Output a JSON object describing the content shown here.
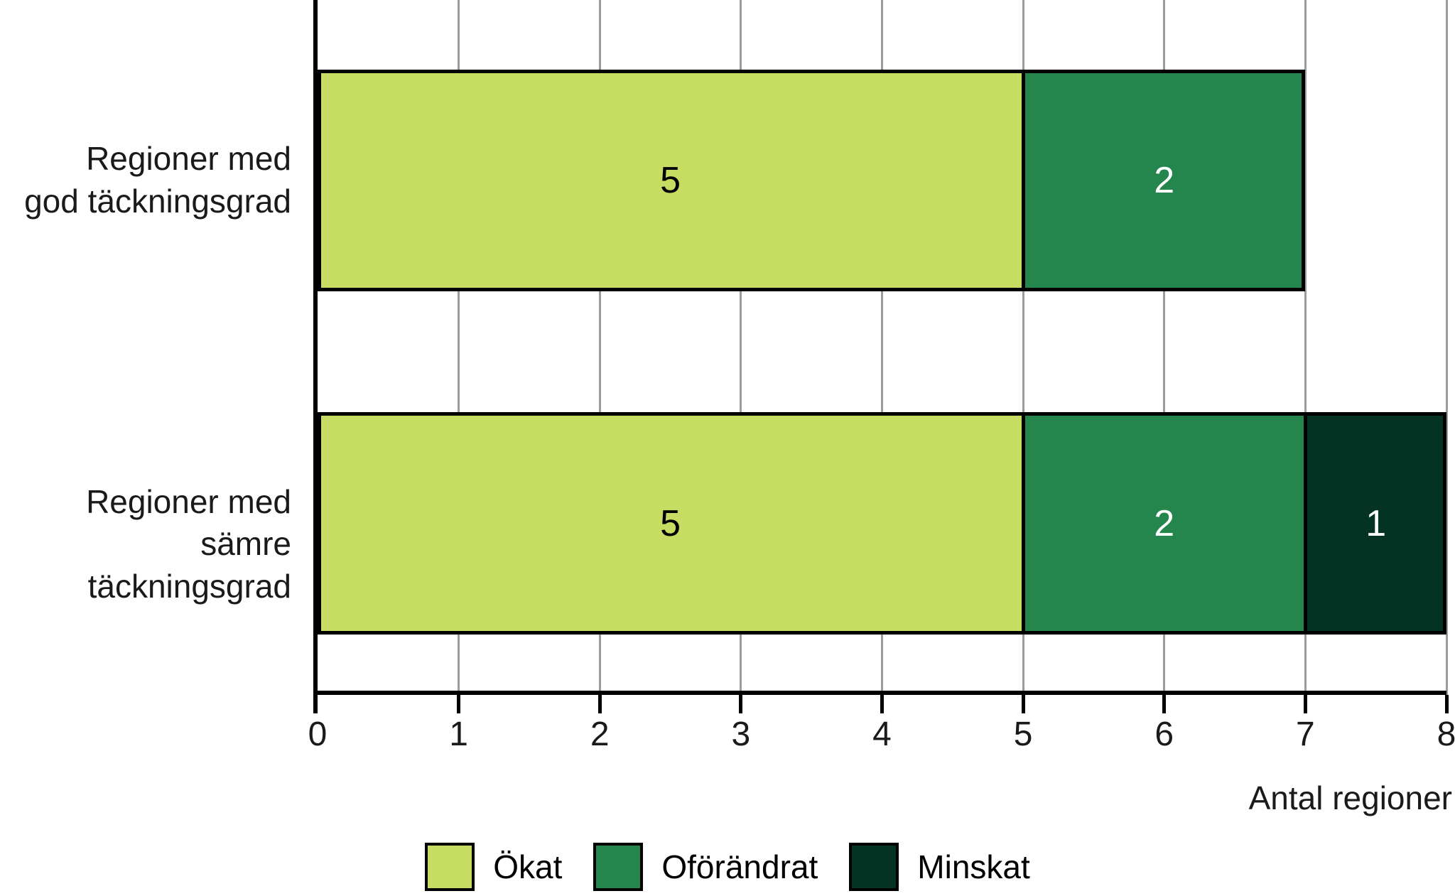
{
  "chart_data": {
    "type": "bar",
    "orientation": "horizontal_stacked",
    "categories": [
      "Regioner med\ngod täckningsgrad",
      "Regioner med\nsämre täckningsgrad"
    ],
    "series": [
      {
        "name": "Ökat",
        "color": "#c7dc63",
        "value_label_color": "#000000",
        "values": [
          5,
          5
        ]
      },
      {
        "name": "Oförändrat",
        "color": "#24854d",
        "value_label_color": "#ffffff",
        "values": [
          2,
          2
        ]
      },
      {
        "name": "Minskat",
        "color": "#043323",
        "value_label_color": "#ffffff",
        "values": [
          0,
          1
        ]
      }
    ],
    "xlabel": "Antal regioner",
    "xlim": [
      0,
      8
    ],
    "x_ticks": [
      0,
      1,
      2,
      3,
      4,
      5,
      6,
      7,
      8
    ],
    "grid": true,
    "grid_color": "#9b9b9b",
    "axis_color": "#000000",
    "bar_border_color": "#000000",
    "legend_position": "bottom"
  }
}
